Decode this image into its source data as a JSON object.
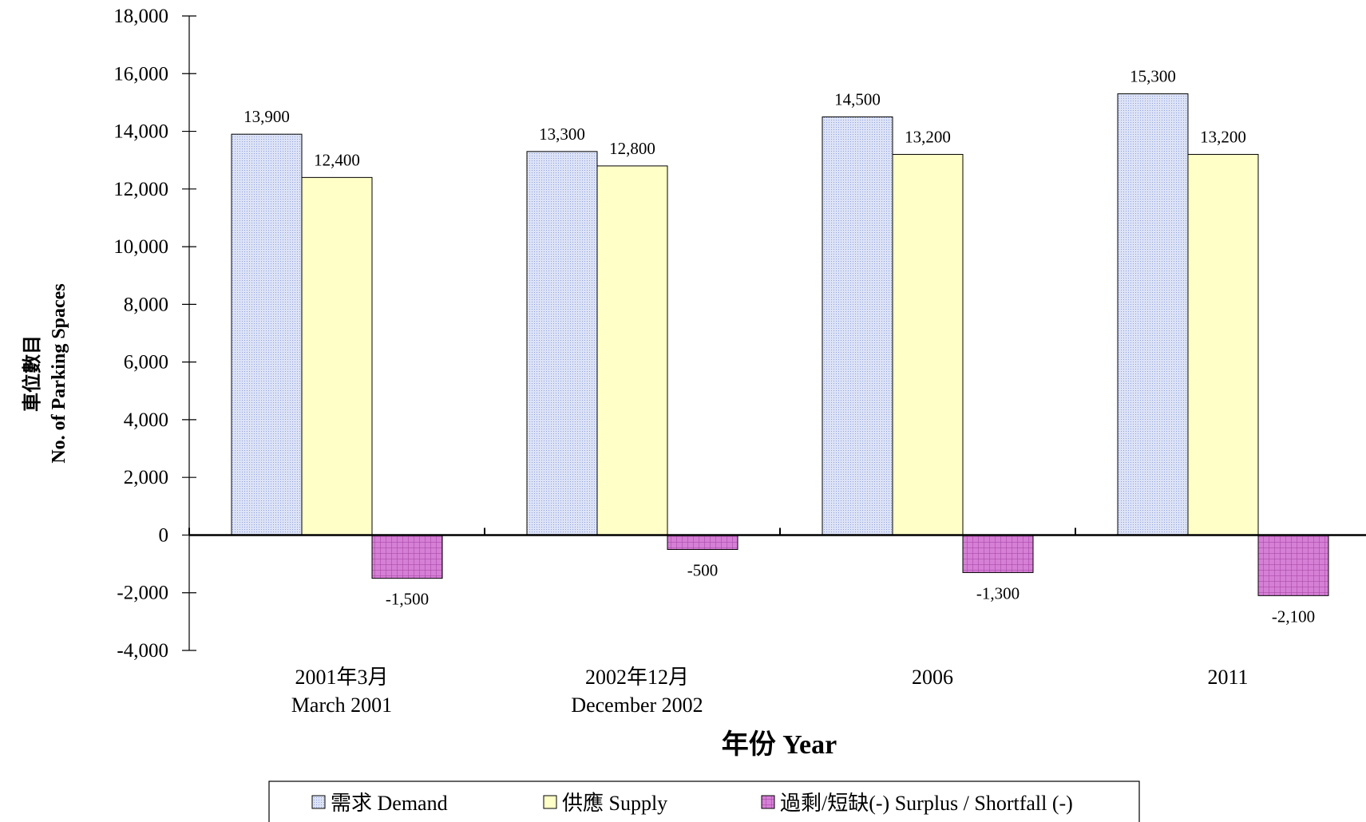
{
  "chart_data": {
    "type": "bar",
    "ylabel_zh": "車位數目",
    "ylabel_en": "No. of Parking Spaces",
    "xlabel": "年份 Year",
    "ylim": [
      -4000,
      18000
    ],
    "yticks": [
      18000,
      16000,
      14000,
      12000,
      10000,
      8000,
      6000,
      4000,
      2000,
      0,
      -2000,
      -4000
    ],
    "ytick_labels": [
      "18,000",
      "16,000",
      "14,000",
      "12,000",
      "10,000",
      "8,000",
      "6,000",
      "4,000",
      "2,000",
      "0",
      "-2,000",
      "-4,000"
    ],
    "categories": [
      {
        "zh": "2001年3月",
        "en": "March 2001"
      },
      {
        "zh": "2002年12月",
        "en": "December 2002"
      },
      {
        "zh": "2006",
        "en": ""
      },
      {
        "zh": "2011",
        "en": ""
      }
    ],
    "series": [
      {
        "name": "需求 Demand",
        "values": [
          13900,
          13300,
          14500,
          15300
        ],
        "labels": [
          "13,900",
          "13,300",
          "14,500",
          "15,300"
        ],
        "color": "#c9d3f0",
        "pattern": "dots"
      },
      {
        "name": "供應 Supply",
        "values": [
          12400,
          12800,
          13200,
          13200
        ],
        "labels": [
          "12,400",
          "12,800",
          "13,200",
          "13,200"
        ],
        "color": "#ffffc8",
        "pattern": "none"
      },
      {
        "name": "過剩/短缺(-) Surplus / Shortfall (-)",
        "values": [
          -1500,
          -500,
          -1300,
          -2100
        ],
        "labels": [
          "-1,500",
          "-500",
          "-1,300",
          "-2,100"
        ],
        "color": "#cc66cc",
        "pattern": "grid"
      }
    ],
    "legend_position": "bottom",
    "grid": false
  }
}
